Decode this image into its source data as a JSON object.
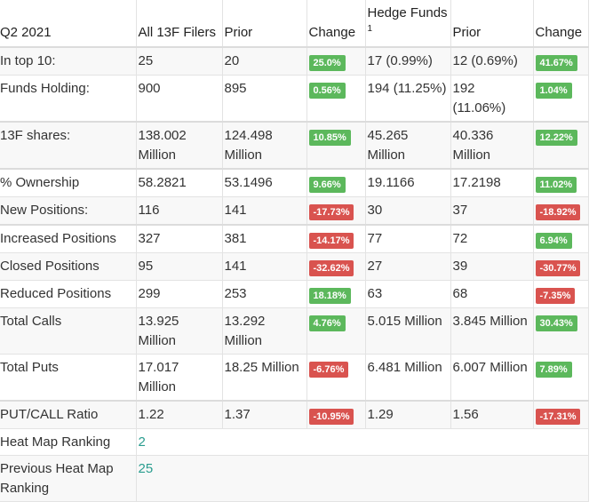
{
  "header": {
    "period": "Q2 2021",
    "all_filers": "All 13F Filers",
    "prior": "Prior",
    "change": "Change",
    "hedge_funds": "Hedge Funds",
    "hedge_funds_sup": "1",
    "prior2": "Prior",
    "change2": "Change"
  },
  "rows": [
    {
      "label": "In top 10:",
      "a": "25",
      "ap": "20",
      "ac": "25.0%",
      "h": "17 (0.99%)",
      "hp": "12 (0.69%)",
      "hc": "41.67%"
    },
    {
      "label": "Funds Holding:",
      "a": "900",
      "ap": "895",
      "ac": "0.56%",
      "h": "194 (11.25%)",
      "hp": "192 (11.06%)",
      "hc": "1.04%"
    },
    {
      "label": "13F shares:",
      "a": "138.002 Million",
      "ap": "124.498 Million",
      "ac": "10.85%",
      "h": "45.265 Million",
      "hp": "40.336 Million",
      "hc": "12.22%"
    },
    {
      "label": "% Ownership",
      "a": "58.2821",
      "ap": "53.1496",
      "ac": "9.66%",
      "h": "19.1166",
      "hp": "17.2198",
      "hc": "11.02%"
    },
    {
      "label": "New Positions:",
      "a": "116",
      "ap": "141",
      "ac": "-17.73%",
      "h": "30",
      "hp": "37",
      "hc": "-18.92%"
    },
    {
      "label": "Increased Positions",
      "a": "327",
      "ap": "381",
      "ac": "-14.17%",
      "h": "77",
      "hp": "72",
      "hc": "6.94%"
    },
    {
      "label": "Closed Positions",
      "a": "95",
      "ap": "141",
      "ac": "-32.62%",
      "h": "27",
      "hp": "39",
      "hc": "-30.77%"
    },
    {
      "label": "Reduced Positions",
      "a": "299",
      "ap": "253",
      "ac": "18.18%",
      "h": "63",
      "hp": "68",
      "hc": "-7.35%"
    },
    {
      "label": "Total Calls",
      "a": "13.925 Million",
      "ap": "13.292 Million",
      "ac": "4.76%",
      "h": "5.015 Million",
      "hp": "3.845 Million",
      "hc": "30.43%"
    },
    {
      "label": "Total Puts",
      "a": "17.017 Million",
      "ap": "18.25 Million",
      "ac": "-6.76%",
      "h": "6.481 Million",
      "hp": "6.007 Million",
      "hc": "7.89%"
    },
    {
      "label": "PUT/CALL Ratio",
      "a": "1.22",
      "ap": "1.37",
      "ac": "-10.95%",
      "h": "1.29",
      "hp": "1.56",
      "hc": "-17.31%"
    }
  ],
  "heat_map": {
    "label": "Heat Map Ranking",
    "value": "2"
  },
  "prev_heat_map": {
    "label": "Previous Heat Map Ranking",
    "value": "25"
  },
  "colors": {
    "positive": "#5cb85c",
    "negative": "#d9534f",
    "link": "#2a9d8f"
  }
}
